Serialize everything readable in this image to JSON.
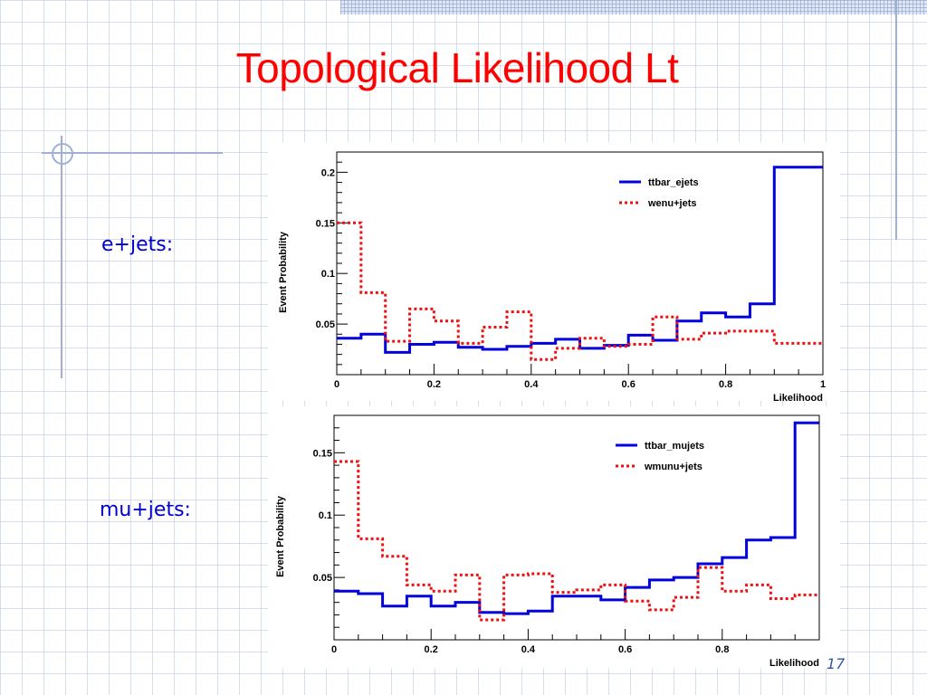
{
  "slide": {
    "title": "Topological Likelihood Lt",
    "label_top": "e+jets:",
    "label_bottom": "mu+jets:",
    "page_number": "17"
  },
  "colors": {
    "title": "#ff0000",
    "labels": "#0000cc",
    "signal": "#0000dd",
    "background": "#ee1111"
  },
  "chart_data": [
    {
      "type": "line",
      "style": "step-histogram",
      "xlabel": "Likelihood",
      "ylabel": "Event Probability",
      "xlim": [
        0,
        1
      ],
      "ylim": [
        0,
        0.22
      ],
      "xticks": [
        0,
        0.2,
        0.4,
        0.6,
        0.8,
        1
      ],
      "yticks": [
        0.05,
        0.1,
        0.15,
        0.2
      ],
      "bin_edges": [
        0,
        0.05,
        0.1,
        0.15,
        0.2,
        0.25,
        0.3,
        0.35,
        0.4,
        0.45,
        0.5,
        0.55,
        0.6,
        0.65,
        0.7,
        0.75,
        0.8,
        0.85,
        0.9,
        0.95,
        1.0
      ],
      "legend_position": "top-right",
      "series": [
        {
          "name": "ttbar_ejets",
          "dash": "solid",
          "values": [
            0.036,
            0.04,
            0.022,
            0.03,
            0.032,
            0.027,
            0.025,
            0.028,
            0.031,
            0.035,
            0.026,
            0.029,
            0.039,
            0.034,
            0.053,
            0.061,
            0.057,
            0.07,
            0.205,
            0.205
          ]
        },
        {
          "name": "wenu+jets",
          "dash": "dotted",
          "values": [
            0.15,
            0.081,
            0.033,
            0.065,
            0.053,
            0.031,
            0.047,
            0.062,
            0.015,
            0.026,
            0.036,
            0.028,
            0.03,
            0.057,
            0.035,
            0.041,
            0.043,
            0.043,
            0.031,
            0.031
          ]
        }
      ]
    },
    {
      "type": "line",
      "style": "step-histogram",
      "xlabel": "Likelihood",
      "ylabel": "Event Probability",
      "xlim": [
        0,
        1
      ],
      "ylim": [
        0,
        0.18
      ],
      "xticks": [
        0,
        0.2,
        0.4,
        0.6,
        0.8
      ],
      "yticks": [
        0.05,
        0.1,
        0.15
      ],
      "bin_edges": [
        0,
        0.05,
        0.1,
        0.15,
        0.2,
        0.25,
        0.3,
        0.35,
        0.4,
        0.45,
        0.5,
        0.55,
        0.6,
        0.65,
        0.7,
        0.75,
        0.8,
        0.85,
        0.9,
        0.95,
        1.0
      ],
      "legend_position": "top-right",
      "series": [
        {
          "name": "ttbar_mujets",
          "dash": "solid",
          "values": [
            0.039,
            0.037,
            0.027,
            0.035,
            0.027,
            0.03,
            0.022,
            0.021,
            0.023,
            0.035,
            0.035,
            0.032,
            0.042,
            0.048,
            0.05,
            0.061,
            0.066,
            0.08,
            0.082,
            0.174
          ]
        },
        {
          "name": "wmunu+jets",
          "dash": "dotted",
          "values": [
            0.143,
            0.081,
            0.067,
            0.044,
            0.039,
            0.052,
            0.016,
            0.052,
            0.053,
            0.038,
            0.04,
            0.044,
            0.031,
            0.024,
            0.034,
            0.058,
            0.039,
            0.044,
            0.033,
            0.036
          ]
        }
      ]
    }
  ]
}
